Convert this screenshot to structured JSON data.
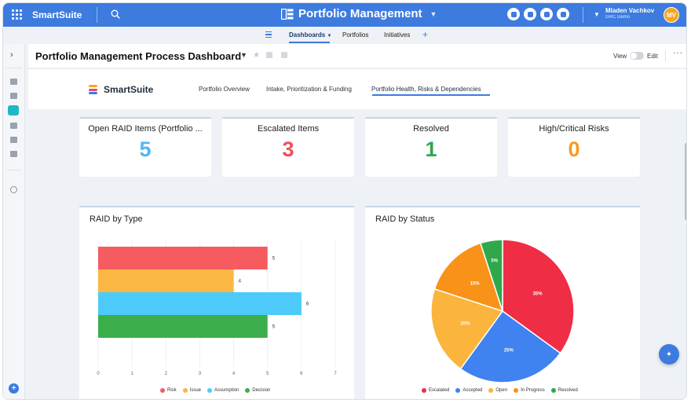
{
  "app": {
    "brand": "SmartSuite",
    "title": "Portfolio Management",
    "user_name": "Mladen Vachkov",
    "user_workspace": "GRC Demo",
    "user_initials": "MV"
  },
  "subnav": {
    "tabs": [
      "Dashboards",
      "Portfolios",
      "Initiatives"
    ],
    "active": "Dashboards",
    "add_label": "+"
  },
  "header": {
    "title": "Portfolio Management Process Dashboard",
    "view_label": "View",
    "edit_label": "Edit",
    "more_label": "···"
  },
  "dashboard": {
    "logo_text": "SmartSuite",
    "tabs": [
      "Portfolio Overview",
      "Intake, Prioritization & Funding",
      "Portfolio Health, Risks & Dependencies"
    ],
    "active_tab": "Portfolio Health, Risks & Dependencies"
  },
  "kpis": [
    {
      "title": "Open RAID Items (Portfolio ...",
      "value": "5",
      "color": "#4fb8f0"
    },
    {
      "title": "Escalated Items",
      "value": "3",
      "color": "#ef4e5a"
    },
    {
      "title": "Resolved",
      "value": "1",
      "color": "#2fa84f"
    },
    {
      "title": "High/Critical Risks",
      "value": "0",
      "color": "#f59a23"
    }
  ],
  "chart_data": [
    {
      "type": "bar",
      "orientation": "horizontal",
      "title": "RAID by Type",
      "categories": [
        "Risk",
        "Issue",
        "Assumption",
        "Decision"
      ],
      "values": [
        5,
        4,
        6,
        5
      ],
      "colors": [
        "#f65b5f",
        "#fbb743",
        "#4ccbfb",
        "#3cae4b"
      ],
      "xlim": [
        0,
        7
      ],
      "xticks": [
        0,
        1,
        2,
        3,
        4,
        5,
        6,
        7
      ],
      "legend": "bottom"
    },
    {
      "type": "pie",
      "title": "RAID by Status",
      "categories": [
        "Escalated",
        "Accepted",
        "Open",
        "In Progress",
        "Resolved"
      ],
      "values": [
        35,
        25,
        20,
        15,
        5
      ],
      "labels": [
        "35%",
        "25%",
        "20%",
        "15%",
        "5%"
      ],
      "colors": [
        "#ef2d44",
        "#3f82f0",
        "#fbb43c",
        "#f89218",
        "#30a84a"
      ],
      "legend": "bottom"
    }
  ]
}
